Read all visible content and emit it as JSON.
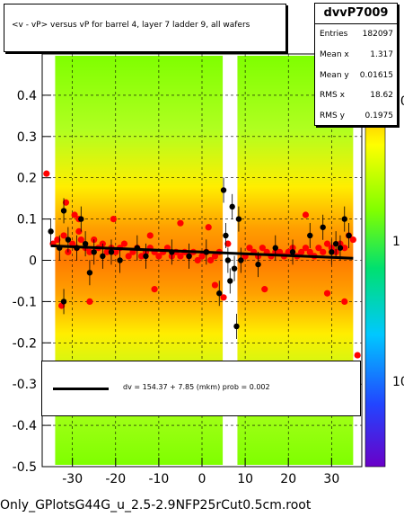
{
  "title": "<v - vP>       versus   vP for barrel 4, layer 7 ladder 9, all wafers",
  "stats": {
    "name": "dvvP7009",
    "rows": [
      {
        "label": "Entries",
        "value": "182097"
      },
      {
        "label": "Mean x",
        "value": "1.317"
      },
      {
        "label": "Mean y",
        "value": "0.01615"
      },
      {
        "label": "RMS x",
        "value": "18.62"
      },
      {
        "label": "RMS y",
        "value": "0.1975"
      }
    ]
  },
  "fit_text": "dv =  154.37 +  7.85 (mkm) prob = 0.002",
  "footer": "Only_GPlotsG44G_u_2.5-2.9NFP25rCut0.5cm.root",
  "colors": {
    "red_points": "#ff0000",
    "black_points": "#000000",
    "fit_line": "#000000",
    "band_inner": "#ff7f00",
    "band_mid": "#ffff00",
    "band_outer": "#7fff00"
  },
  "chart_data": {
    "type": "scatter",
    "xlim": [
      -37,
      37
    ],
    "ylim": [
      -0.5,
      0.5
    ],
    "x_ticks": [
      -30,
      -20,
      -10,
      0,
      10,
      20,
      30
    ],
    "y_ticks": [
      -0.5,
      -0.4,
      -0.3,
      -0.2,
      -0.1,
      0,
      0.1,
      0.2,
      0.3,
      0.4
    ],
    "y_tick_labels": [
      "-0.5",
      "-0.4",
      "-0.3",
      "-0.2",
      "-0.1",
      "0",
      "0.1",
      "0.2",
      "0.3",
      "0.4"
    ],
    "x_tick_labels": [
      "-30",
      "-20",
      "-10",
      "0",
      "10",
      "20",
      "30"
    ],
    "z_tick_labels": [
      "10",
      "1",
      "10"
    ],
    "z_scale": "log",
    "grid": true,
    "fit": {
      "x": [
        -35,
        35
      ],
      "y": [
        0.035,
        0.005
      ]
    },
    "red_series": {
      "x": [
        -36,
        -34.5,
        -33.5,
        -32,
        -31,
        -30,
        -29,
        -28.5,
        -27,
        -26,
        -25,
        -24,
        -23,
        -22,
        -21,
        -20,
        -19,
        -18,
        -17,
        -16,
        -15,
        -14,
        -13,
        -12,
        -11,
        -10,
        -9,
        -8,
        -7,
        -6,
        -5,
        -4,
        -3,
        -2,
        -1,
        0,
        1,
        2,
        3,
        4,
        5,
        6,
        10,
        11,
        12,
        13,
        14,
        15,
        16,
        17,
        18,
        19,
        20,
        21,
        22,
        23,
        24,
        25,
        26,
        27,
        28,
        29,
        30,
        31,
        32,
        33,
        34,
        35,
        -31.5,
        -29.5,
        -28,
        -20.5,
        -12,
        -5,
        1.5,
        24,
        -26,
        -32.5,
        -11,
        3,
        -28.5,
        14.5,
        33,
        29,
        36
      ],
      "y": [
        0.21,
        0.04,
        0.05,
        0.06,
        0.02,
        0.04,
        0.03,
        0.07,
        0.03,
        0.02,
        0.05,
        0.03,
        0.04,
        0.02,
        0.03,
        0.02,
        0.03,
        0.04,
        0.01,
        0.02,
        0.03,
        0.01,
        0.02,
        0.03,
        0.02,
        0.01,
        0.02,
        0.03,
        0.01,
        0.02,
        0.01,
        0.02,
        0.01,
        0.02,
        0.0,
        0.01,
        0.02,
        0.0,
        0.01,
        0.02,
        -0.09,
        0.04,
        0.01,
        0.03,
        0.02,
        0.01,
        0.03,
        0.02,
        0.01,
        0.02,
        0.02,
        0.01,
        0.02,
        0.03,
        0.01,
        0.02,
        0.03,
        0.02,
        0.01,
        0.03,
        0.02,
        0.04,
        0.03,
        0.02,
        0.04,
        0.03,
        0.06,
        0.05,
        0.14,
        0.11,
        0.05,
        0.1,
        0.06,
        0.09,
        0.08,
        0.11,
        -0.1,
        -0.11,
        -0.07,
        -0.06,
        0.1,
        -0.07,
        -0.1,
        -0.08,
        -0.23
      ]
    },
    "black_series": {
      "x": [
        -35,
        -33,
        -32,
        -31,
        -29,
        -28,
        -27,
        -25,
        -23,
        -21,
        -19,
        -15,
        -13,
        -7,
        -3,
        1,
        4,
        5,
        5.5,
        6,
        6.5,
        7,
        7.5,
        8,
        8.5,
        9,
        13,
        17,
        21,
        25,
        28,
        30,
        31,
        32,
        33,
        34,
        -32,
        -26
      ],
      "y": [
        0.07,
        0.03,
        -0.1,
        0.05,
        0.03,
        0.1,
        0.04,
        0.02,
        0.01,
        0.02,
        0.0,
        0.03,
        0.01,
        0.02,
        0.01,
        0.02,
        -0.08,
        0.17,
        0.06,
        0.0,
        -0.05,
        0.13,
        -0.02,
        -0.16,
        0.1,
        0.0,
        -0.01,
        0.03,
        0.02,
        0.06,
        0.08,
        0.02,
        0.04,
        0.03,
        0.1,
        0.06,
        0.12,
        -0.03
      ]
    }
  }
}
